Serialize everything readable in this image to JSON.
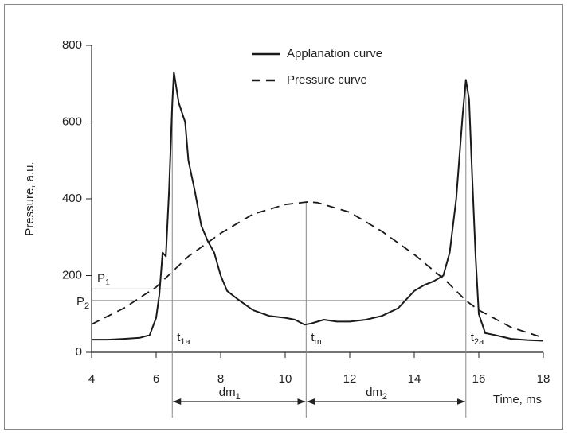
{
  "chart_data": {
    "type": "line",
    "xlabel": "Time, ms",
    "ylabel": "Pressure, a.u.",
    "xlim": [
      4,
      18
    ],
    "ylim": [
      0,
      800
    ],
    "xticks": [
      4,
      6,
      8,
      10,
      12,
      14,
      16,
      18
    ],
    "yticks": [
      0,
      200,
      400,
      600,
      800
    ],
    "legend": "top-center",
    "series": [
      {
        "name": "Applanation curve",
        "color": "#1a1a1a",
        "style": "solid",
        "x": [
          4,
          4.5,
          5,
          5.5,
          5.8,
          6.0,
          6.1,
          6.2,
          6.3,
          6.4,
          6.5,
          6.55,
          6.7,
          6.9,
          7.0,
          7.2,
          7.4,
          7.6,
          7.8,
          8.0,
          8.2,
          8.5,
          9.0,
          9.5,
          10.0,
          10.3,
          10.6,
          10.8,
          11.2,
          11.6,
          12,
          12.5,
          13,
          13.5,
          14,
          14.3,
          14.6,
          14.9,
          15.1,
          15.3,
          15.5,
          15.6,
          15.7,
          15.8,
          15.9,
          16.0,
          16.2,
          16.5,
          17,
          17.5,
          18
        ],
        "values": [
          33,
          33,
          35,
          38,
          45,
          90,
          150,
          260,
          250,
          420,
          650,
          730,
          650,
          600,
          500,
          420,
          330,
          290,
          260,
          200,
          160,
          140,
          110,
          95,
          90,
          85,
          72,
          75,
          85,
          80,
          80,
          85,
          95,
          115,
          160,
          175,
          185,
          200,
          260,
          400,
          620,
          710,
          660,
          450,
          250,
          100,
          50,
          45,
          35,
          32,
          30
        ]
      },
      {
        "name": "Pressure curve",
        "color": "#1a1a1a",
        "style": "dashed",
        "x": [
          4,
          5,
          6,
          6.5,
          7,
          8,
          9,
          10,
          10.7,
          11,
          12,
          13,
          14,
          15,
          15.6,
          16,
          17,
          18
        ],
        "values": [
          73,
          115,
          170,
          210,
          250,
          310,
          360,
          385,
          392,
          390,
          365,
          315,
          255,
          185,
          135,
          110,
          65,
          38
        ]
      }
    ],
    "levels": [
      {
        "label": "P",
        "sub": "1",
        "value": 165
      },
      {
        "label": "P",
        "sub": "2",
        "value": 135
      }
    ],
    "times": [
      {
        "label": "t",
        "sub": "1a",
        "value": 6.5
      },
      {
        "label": "t",
        "sub": "m",
        "value": 10.65
      },
      {
        "label": "t",
        "sub": "2a",
        "value": 15.6
      }
    ],
    "intervals": [
      {
        "label": "dm",
        "sub": "1"
      },
      {
        "label": "dm",
        "sub": "2"
      }
    ]
  }
}
